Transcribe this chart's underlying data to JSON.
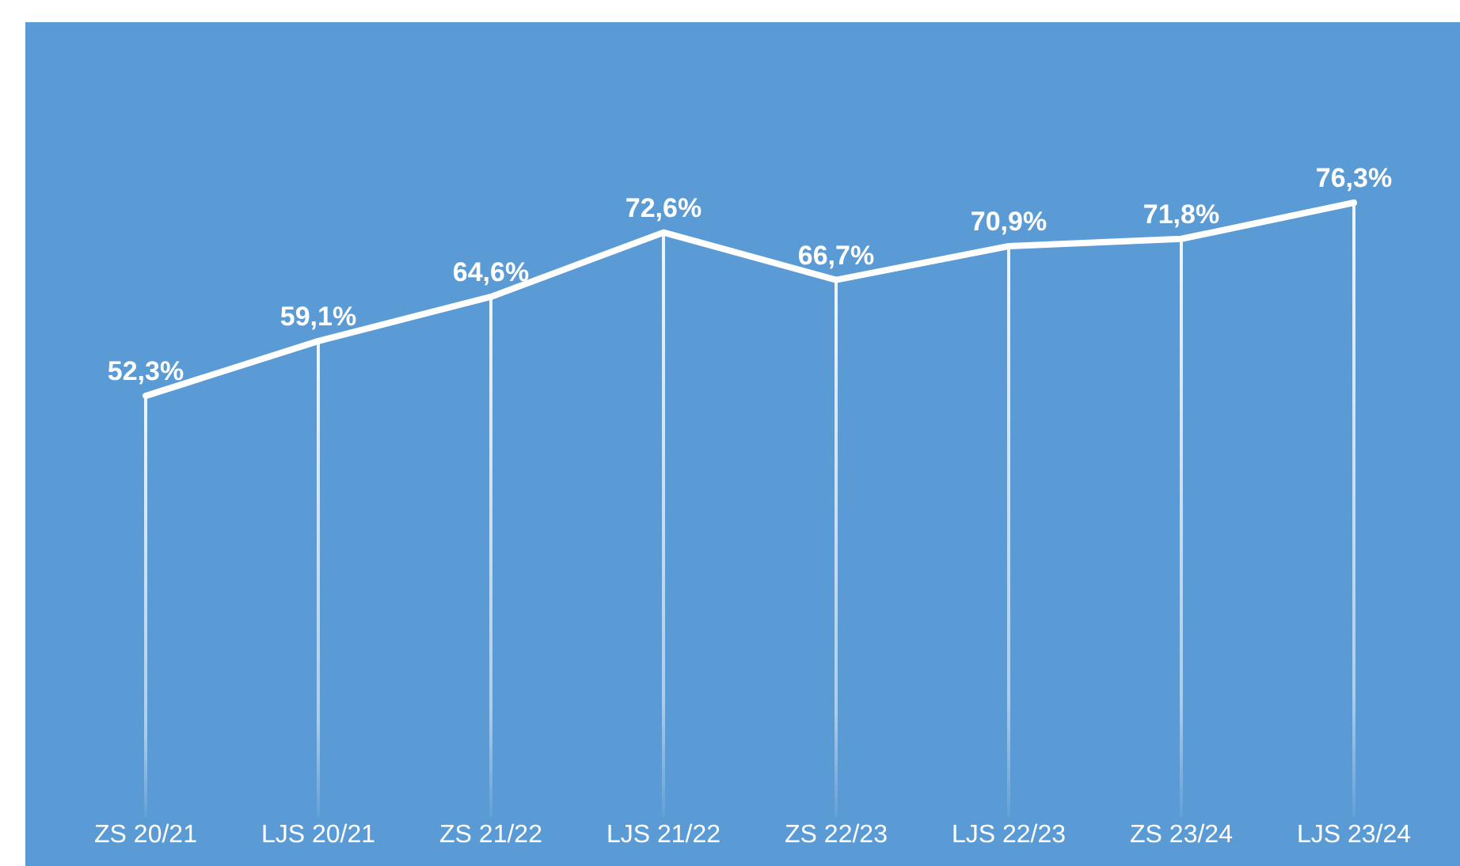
{
  "chart_data": {
    "type": "line",
    "categories": [
      "ZS 20/21",
      "LJS 20/21",
      "ZS 21/22",
      "LJS 21/22",
      "ZS 22/23",
      "LJS 22/23",
      "ZS 23/24",
      "LJS 23/24"
    ],
    "series": [
      {
        "type": "bar",
        "color": "#ffffff",
        "values": [
          52.3,
          59.1,
          64.6,
          72.6,
          66.7,
          70.9,
          71.8,
          76.3
        ]
      },
      {
        "color": "#ffffff",
        "values": [
          52.3,
          59.1,
          64.6,
          72.6,
          66.7,
          70.9,
          71.8,
          76.3
        ],
        "value_labels": [
          "52,3%",
          "59,1%",
          "64,6%",
          "72,6%",
          "66,7%",
          "70,9%",
          "71,8%",
          "76,3%"
        ]
      }
    ],
    "marker": "none",
    "line_style": "solid",
    "grid": false
  }
}
